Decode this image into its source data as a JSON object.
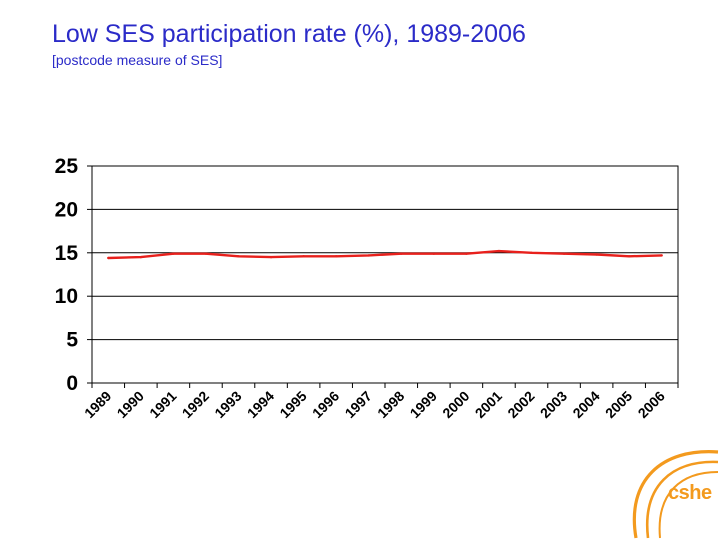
{
  "slide": {
    "title": "Low SES participation rate (%), 1989-2006",
    "subtitle": "[postcode measure of SES]"
  },
  "logo": {
    "text": "cshe",
    "color": "#f39a1e"
  },
  "chart_data": {
    "type": "line",
    "title": "Low SES participation rate (%), 1989-2006",
    "subtitle": "[postcode measure of SES]",
    "x": [
      "1989",
      "1990",
      "1991",
      "1992",
      "1993",
      "1994",
      "1995",
      "1996",
      "1997",
      "1998",
      "1999",
      "2000",
      "2001",
      "2002",
      "2003",
      "2004",
      "2005",
      "2006"
    ],
    "y_ticks": [
      0,
      5,
      10,
      15,
      20,
      25
    ],
    "ylim": [
      0,
      25
    ],
    "grid": true,
    "legend": "none",
    "series": [
      {
        "color": "#e8201c",
        "values": [
          14.4,
          14.5,
          14.9,
          14.9,
          14.6,
          14.5,
          14.6,
          14.6,
          14.7,
          14.9,
          14.9,
          14.9,
          15.2,
          15.0,
          14.9,
          14.8,
          14.6,
          14.7
        ]
      }
    ]
  }
}
